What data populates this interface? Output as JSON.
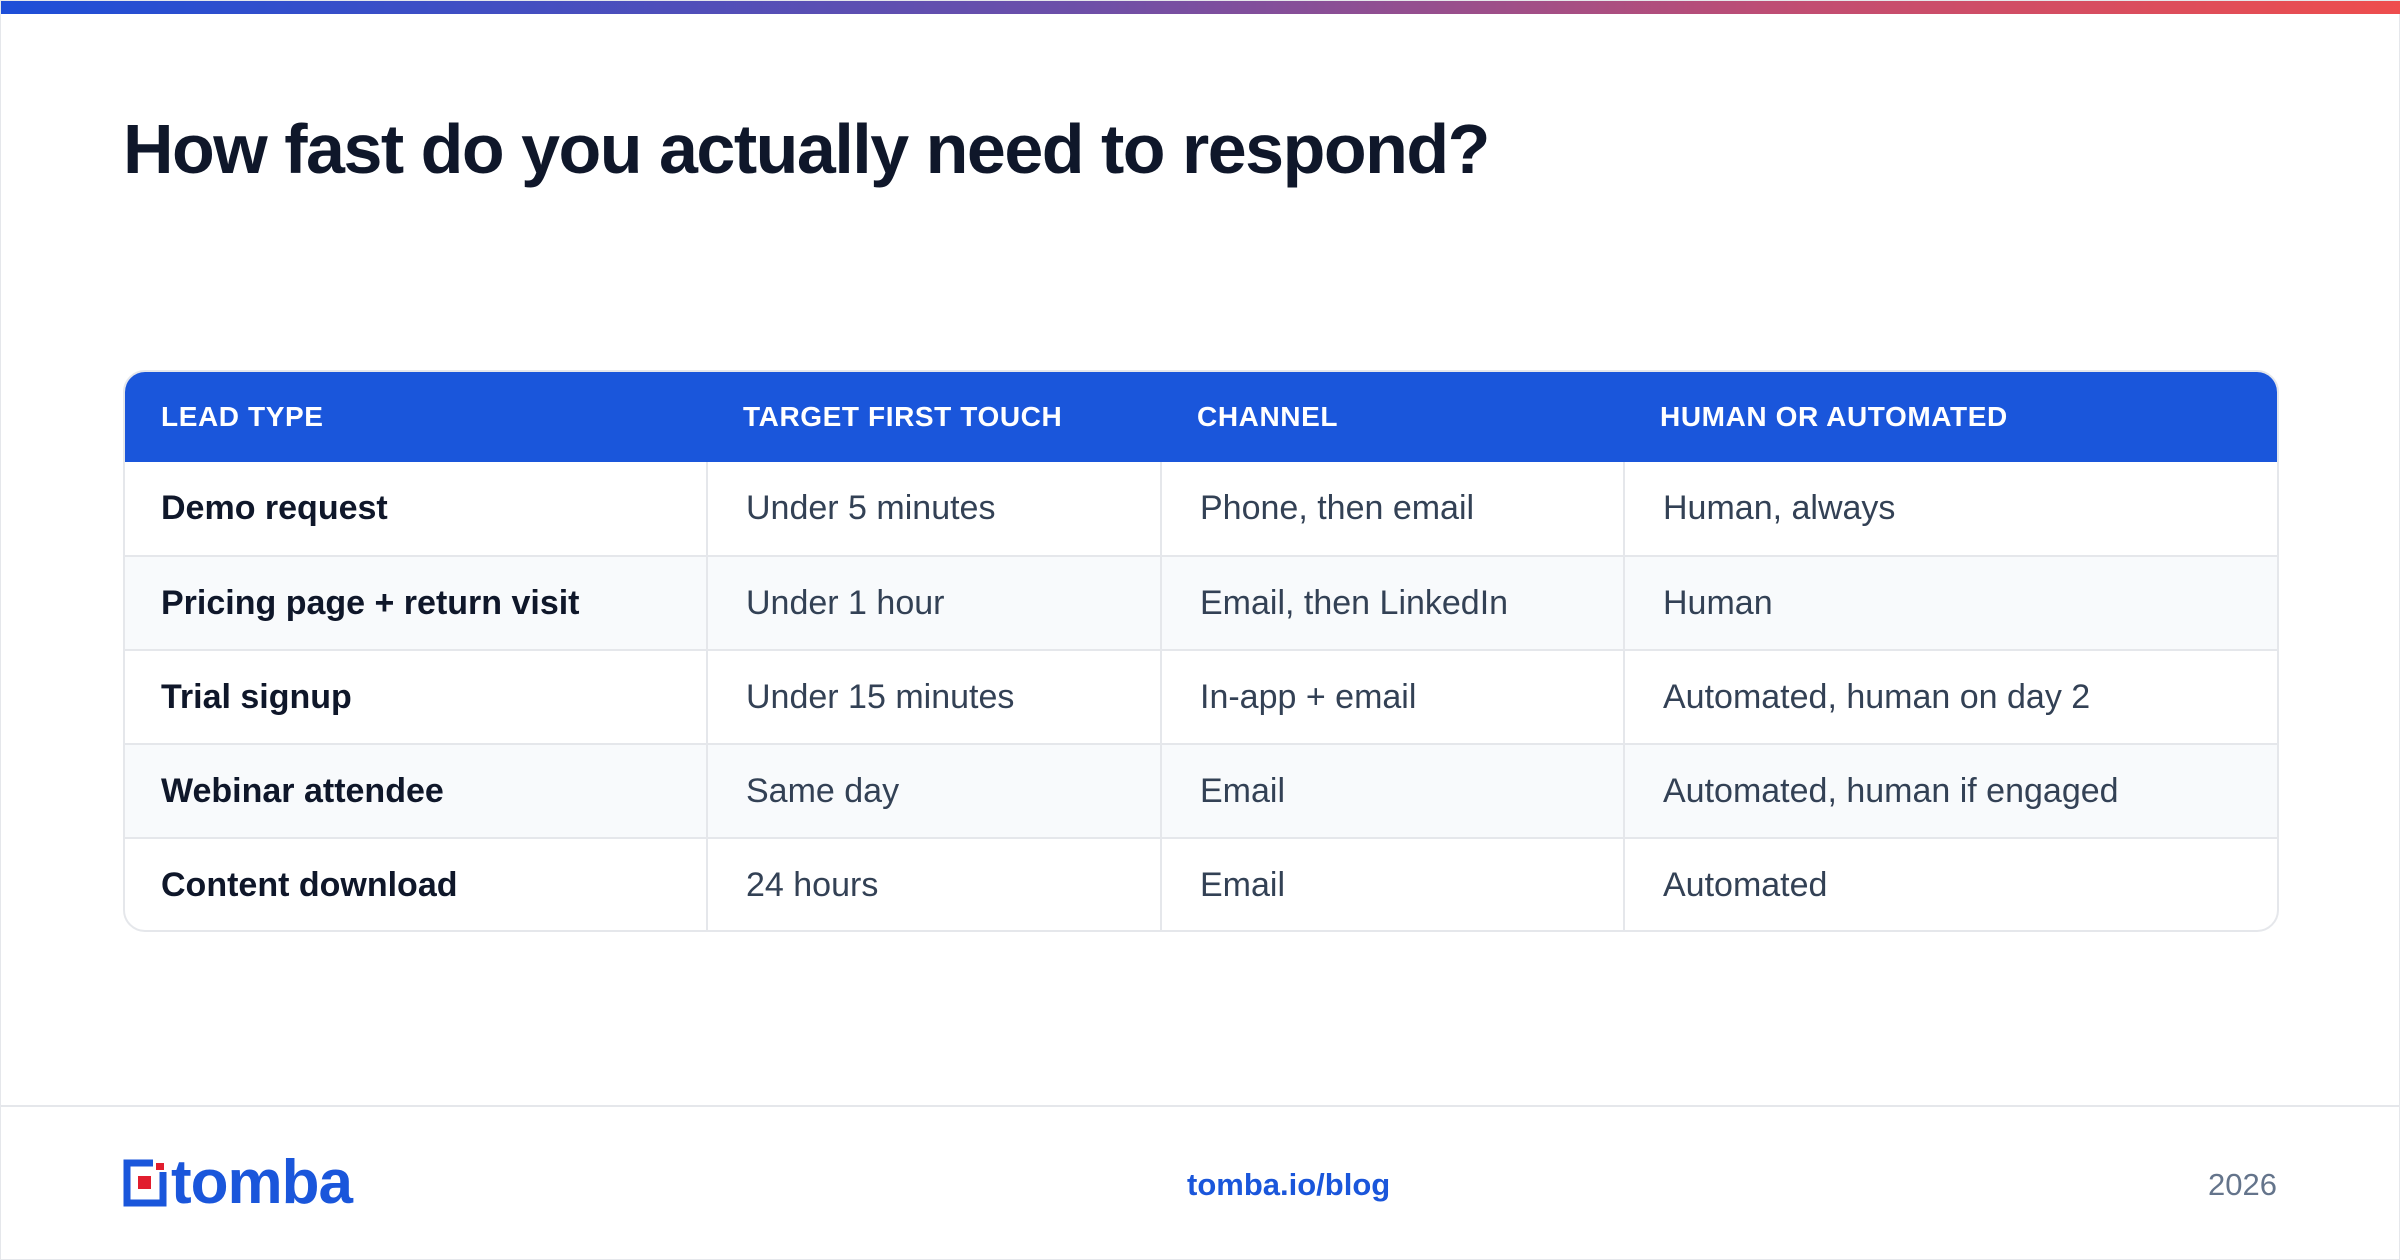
{
  "title": "How fast do you actually need to respond?",
  "table": {
    "headers": [
      "LEAD TYPE",
      "TARGET FIRST TOUCH",
      "CHANNEL",
      "HUMAN OR AUTOMATED"
    ],
    "rows": [
      [
        "Demo request",
        "Under 5 minutes",
        "Phone, then email",
        "Human, always"
      ],
      [
        "Pricing page + return visit",
        "Under 1 hour",
        "Email, then LinkedIn",
        "Human"
      ],
      [
        "Trial signup",
        "Under 15 minutes",
        "In-app + email",
        "Automated, human on day 2"
      ],
      [
        "Webinar attendee",
        "Same day",
        "Email",
        "Automated, human if engaged"
      ],
      [
        "Content download",
        "24 hours",
        "Email",
        "Automated"
      ]
    ]
  },
  "footer": {
    "logo_text": "tomba",
    "url": "tomba.io/blog",
    "year": "2026"
  },
  "colors": {
    "accent": "#1a56db",
    "logo_red": "#e11d2e",
    "title": "#0f172a"
  }
}
